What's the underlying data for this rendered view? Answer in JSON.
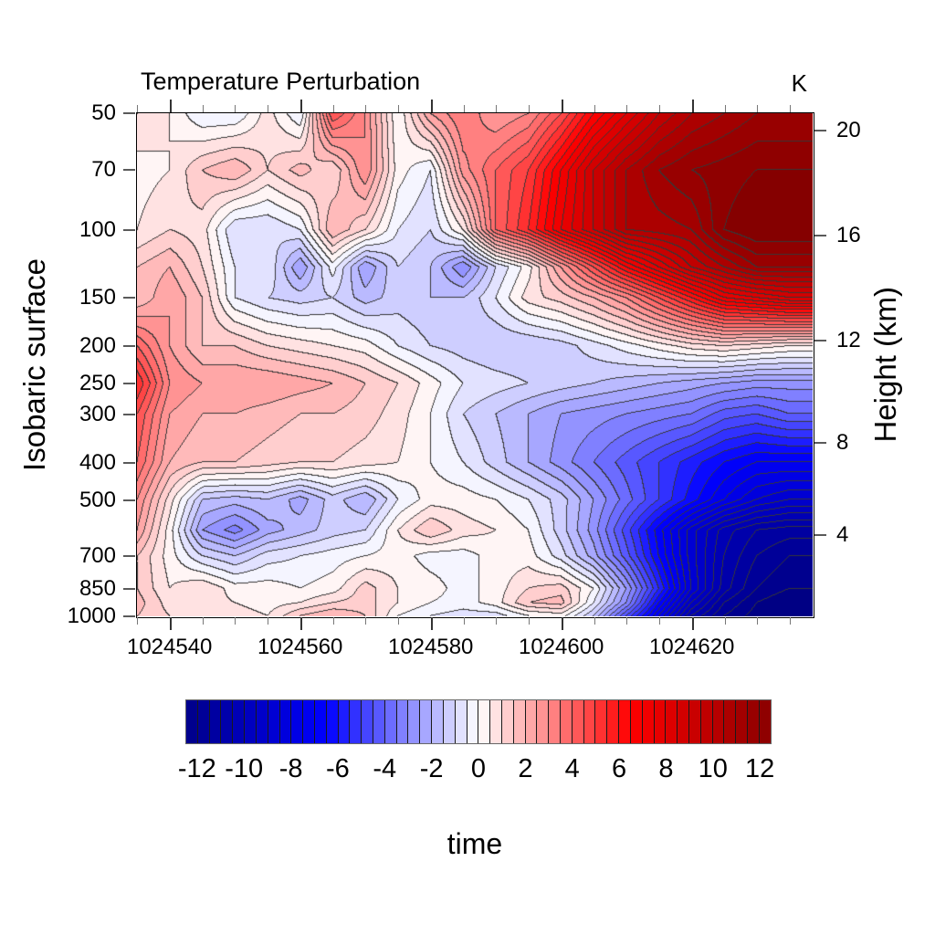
{
  "title": "Temperature Perturbation",
  "units_label": "K",
  "left_axis": {
    "label": "Isobaric surface",
    "tick_values": [
      50,
      70,
      100,
      150,
      200,
      250,
      300,
      400,
      500,
      700,
      850,
      1000
    ]
  },
  "right_axis": {
    "label": "Height (km)",
    "tick_values": [
      20,
      16,
      12,
      8,
      4
    ]
  },
  "x_axis": {
    "label": "time",
    "tick_values": [
      1024540,
      1024560,
      1024580,
      1024600,
      1024620
    ],
    "minor_tick_step": 5,
    "range": [
      1024535,
      1024638.5
    ]
  },
  "colorbar": {
    "min": -12.5,
    "max": 12.5,
    "step": 0.5,
    "tick_labels": [
      -12,
      -10,
      -8,
      -6,
      -4,
      -2,
      0,
      2,
      4,
      6,
      8,
      10,
      12
    ],
    "colormap": "blue-white-red seismic",
    "color_min_hex": "#00008b",
    "color_zero_hex": "#ffffff",
    "color_max_hex": "#8b0000"
  },
  "chart_data": {
    "type": "contour",
    "title": "Temperature Perturbation",
    "xlabel": "time",
    "ylabel": "Isobaric surface",
    "ylabel_right": "Height (km)",
    "units": "K",
    "y_axis_scale": "log-pressure hPa, inverted (50 top to 1000 bottom)",
    "contour_interval": 0.5,
    "fill_range": [
      -13,
      13
    ],
    "x_times": [
      1024535,
      1024540,
      1024545,
      1024550,
      1024555,
      1024560,
      1024565,
      1024570,
      1024575,
      1024580,
      1024585,
      1024590,
      1024595,
      1024600,
      1024605,
      1024610,
      1024615,
      1024620,
      1024625,
      1024630,
      1024635,
      1024640
    ],
    "pressure_levels_hPa": [
      50,
      70,
      100,
      125,
      150,
      200,
      250,
      300,
      400,
      500,
      600,
      700,
      850,
      925,
      1000
    ],
    "values_K": [
      [
        1.0,
        0.5,
        -0.5,
        -0.5,
        0.75,
        -0.5,
        4.5,
        3.0,
        0.0,
        2.5,
        3.5,
        2.5,
        3.0,
        4.5,
        6.5,
        8.0,
        9.5,
        10.5,
        11.0,
        11.5,
        11.5,
        11.5
      ],
      [
        0.25,
        0.5,
        1.5,
        2.0,
        1.0,
        1.75,
        1.0,
        3.0,
        0.25,
        -0.5,
        2.75,
        4.0,
        5.0,
        7.0,
        9.0,
        10.5,
        11.5,
        12.0,
        12.25,
        12.5,
        12.5,
        12.5
      ],
      [
        0.5,
        1.0,
        0.75,
        -1.0,
        -1.0,
        -0.5,
        2.0,
        1.0,
        -0.5,
        -1.0,
        0.5,
        4.0,
        5.5,
        7.5,
        9.0,
        10.5,
        10.75,
        11.0,
        12.5,
        13.0,
        13.0,
        13.0
      ],
      [
        1.5,
        2.0,
        1.0,
        -0.5,
        -0.5,
        -2.5,
        -0.25,
        -2.5,
        -1.0,
        -1.5,
        -3.0,
        -1.0,
        0.25,
        2.5,
        4.5,
        6.5,
        8.0,
        9.5,
        10.5,
        11.5,
        11.5,
        11.5
      ],
      [
        1.5,
        2.5,
        1.5,
        -0.5,
        -1.0,
        -1.25,
        -1.0,
        -1.75,
        -1.25,
        -1.5,
        -1.5,
        -0.5,
        0.75,
        1.25,
        2.0,
        3.0,
        4.5,
        6.0,
        7.5,
        8.0,
        8.5,
        8.5
      ],
      [
        4.0,
        2.5,
        1.5,
        1.5,
        1.0,
        0.75,
        0.5,
        0.25,
        -0.5,
        -1.0,
        -1.25,
        -1.5,
        -1.5,
        -1.25,
        -0.75,
        -0.25,
        0.25,
        0.75,
        1.0,
        0.75,
        0.5,
        0.5
      ],
      [
        5.5,
        3.0,
        2.5,
        2.5,
        2.5,
        2.25,
        2.0,
        1.5,
        1.0,
        0.25,
        -0.5,
        -0.75,
        -1.0,
        -1.25,
        -1.5,
        -1.75,
        -2.0,
        -2.25,
        -2.5,
        -2.75,
        -2.75,
        -2.75
      ],
      [
        4.5,
        2.5,
        2.0,
        2.0,
        1.75,
        1.5,
        1.5,
        1.25,
        0.75,
        0.0,
        -1.0,
        -1.5,
        -2.0,
        -2.5,
        -2.75,
        -3.0,
        -3.25,
        -3.5,
        -4.25,
        -4.5,
        -4.0,
        -4.0
      ],
      [
        4.0,
        2.0,
        1.5,
        1.5,
        1.25,
        1.0,
        1.0,
        0.75,
        0.5,
        0.0,
        -0.5,
        -1.25,
        -2.0,
        -2.75,
        -3.5,
        -4.25,
        -5.0,
        -5.75,
        -6.5,
        -7.0,
        -7.0,
        -7.0
      ],
      [
        3.0,
        0.75,
        -1.5,
        -1.75,
        -1.5,
        -2.25,
        -1.25,
        -2.0,
        -0.5,
        0.25,
        0.25,
        0.0,
        -0.5,
        -1.25,
        -2.5,
        -3.75,
        -5.0,
        -6.25,
        -7.5,
        -8.5,
        -9.0,
        -9.0
      ],
      [
        2.5,
        0.25,
        -2.5,
        -3.25,
        -2.25,
        -1.75,
        -1.25,
        -1.0,
        0.5,
        1.5,
        0.75,
        0.5,
        0.0,
        -1.25,
        -2.75,
        -4.75,
        -6.75,
        -8.75,
        -10.25,
        -11.0,
        -11.25,
        -11.25
      ],
      [
        1.5,
        0.25,
        -1.0,
        -1.5,
        -0.75,
        -0.5,
        -0.25,
        0.0,
        0.25,
        -0.25,
        -0.25,
        0.25,
        0.25,
        -0.75,
        -2.25,
        -4.25,
        -6.5,
        -8.75,
        -10.5,
        -11.5,
        -12.0,
        -12.0
      ],
      [
        1.5,
        0.5,
        1.0,
        0.25,
        0.25,
        0.0,
        0.25,
        1.25,
        0.5,
        0.25,
        -0.25,
        0.25,
        1.0,
        1.25,
        0.0,
        -2.5,
        -5.5,
        -8.5,
        -10.75,
        -12.0,
        -12.5,
        -12.5
      ],
      [
        1.75,
        0.75,
        0.75,
        0.5,
        0.25,
        0.5,
        1.0,
        1.25,
        0.5,
        0.0,
        -0.25,
        0.25,
        1.5,
        1.75,
        -0.5,
        -3.0,
        -6.5,
        -9.5,
        -11.5,
        -12.5,
        -13.0,
        -13.0
      ],
      [
        1.5,
        1.0,
        0.5,
        0.75,
        0.5,
        1.5,
        2.0,
        1.5,
        0.0,
        -0.5,
        -0.75,
        -0.75,
        0.0,
        0.25,
        -1.5,
        -4.5,
        -7.5,
        -10.5,
        -12.0,
        -12.75,
        -13.0,
        -13.0
      ]
    ]
  }
}
